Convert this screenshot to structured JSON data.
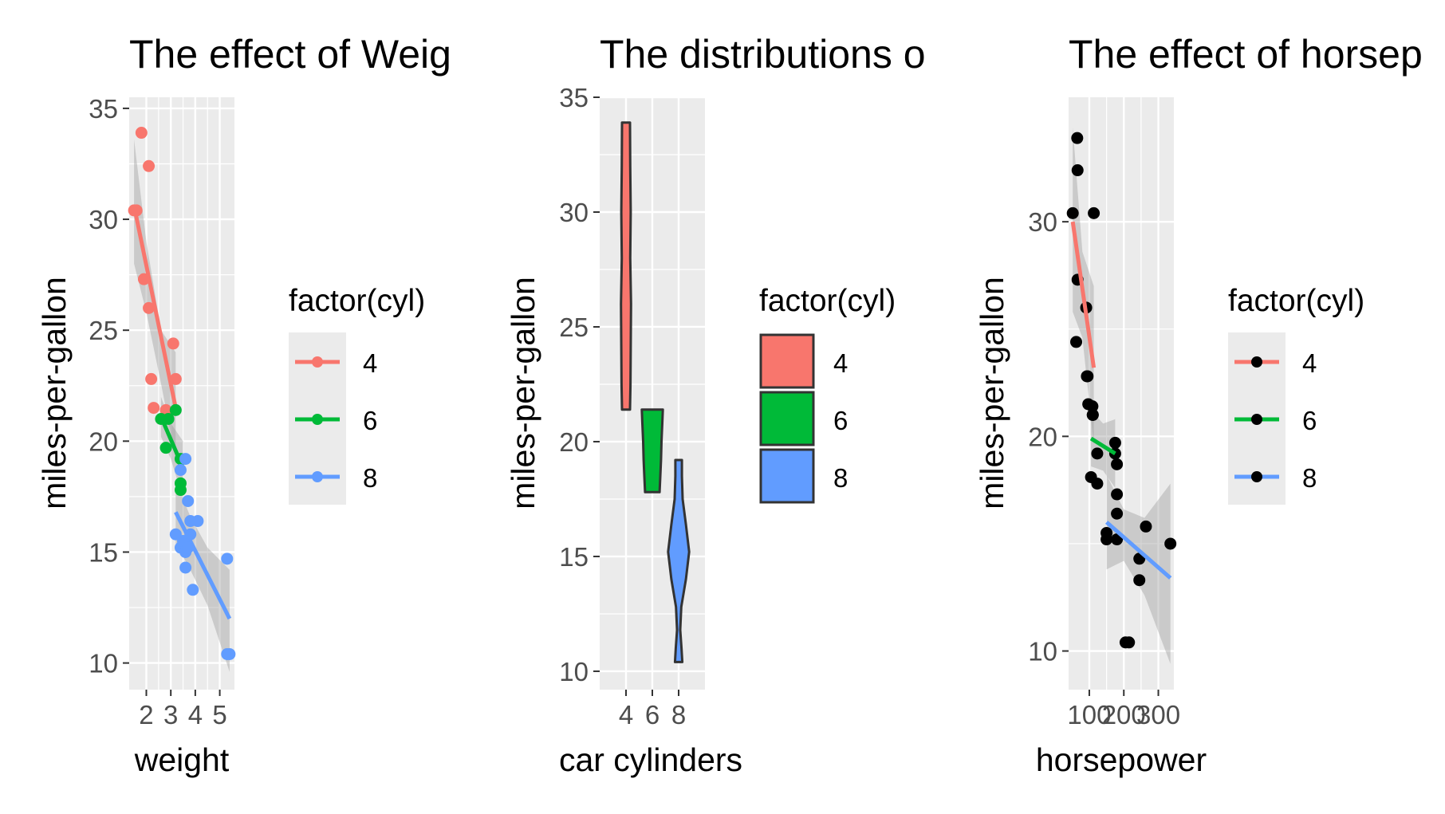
{
  "chart_data": [
    {
      "type": "scatter",
      "title": "The effect of Weig",
      "xlabel": "weight",
      "ylabel": "miles-per-gallon",
      "xlim": [
        1.3,
        5.6
      ],
      "ylim": [
        8.8,
        35.5
      ],
      "x_ticks": [
        2,
        3,
        4,
        5
      ],
      "y_ticks": [
        10,
        15,
        20,
        25,
        30,
        35
      ],
      "grid": true,
      "legend": {
        "title": "factor(cyl)",
        "placement": "right",
        "entries": [
          "4",
          "6",
          "8"
        ]
      },
      "colors": {
        "4": "#F8766D",
        "6": "#00BA38",
        "8": "#619CFF"
      },
      "series": [
        {
          "name": "4",
          "points": [
            [
              1.5,
              30.4
            ],
            [
              1.6,
              30.4
            ],
            [
              1.8,
              33.9
            ],
            [
              1.9,
              27.3
            ],
            [
              2.1,
              32.4
            ],
            [
              2.1,
              26.0
            ],
            [
              2.2,
              22.8
            ],
            [
              2.3,
              21.5
            ],
            [
              2.8,
              21.4
            ],
            [
              3.1,
              24.4
            ],
            [
              3.2,
              22.8
            ]
          ],
          "fit": [
            [
              1.5,
              30.6
            ],
            [
              3.2,
              21.5
            ]
          ],
          "band_upper": [
            [
              1.5,
              33.6
            ],
            [
              2.0,
              29.0
            ],
            [
              2.6,
              25.0
            ],
            [
              3.2,
              24.0
            ]
          ],
          "band_lower": [
            [
              1.5,
              28.0
            ],
            [
              2.0,
              25.8
            ],
            [
              2.6,
              22.6
            ],
            [
              3.2,
              19.2
            ]
          ]
        },
        {
          "name": "6",
          "points": [
            [
              2.6,
              21.0
            ],
            [
              2.9,
              21.0
            ],
            [
              2.8,
              19.7
            ],
            [
              3.2,
              21.4
            ],
            [
              3.4,
              18.1
            ],
            [
              3.4,
              17.8
            ],
            [
              3.4,
              19.2
            ]
          ],
          "fit": [
            [
              2.6,
              21.1
            ],
            [
              3.5,
              18.8
            ]
          ],
          "band_upper": [
            [
              2.6,
              22.0
            ],
            [
              3.0,
              20.8
            ],
            [
              3.5,
              20.0
            ]
          ],
          "band_lower": [
            [
              2.6,
              20.2
            ],
            [
              3.0,
              19.2
            ],
            [
              3.5,
              17.4
            ]
          ]
        },
        {
          "name": "8",
          "points": [
            [
              3.4,
              18.7
            ],
            [
              3.6,
              19.2
            ],
            [
              3.7,
              17.3
            ],
            [
              3.8,
              16.4
            ],
            [
              3.4,
              15.2
            ],
            [
              3.5,
              15.5
            ],
            [
              3.6,
              15.0
            ],
            [
              3.7,
              15.2
            ],
            [
              3.8,
              15.8
            ],
            [
              3.2,
              15.8
            ],
            [
              3.6,
              14.3
            ],
            [
              3.9,
              13.3
            ],
            [
              4.1,
              16.4
            ],
            [
              5.3,
              10.4
            ],
            [
              5.4,
              10.4
            ],
            [
              5.3,
              14.7
            ]
          ],
          "fit": [
            [
              3.2,
              16.8
            ],
            [
              5.4,
              12.0
            ]
          ],
          "band_upper": [
            [
              3.2,
              18.2
            ],
            [
              3.8,
              16.6
            ],
            [
              4.5,
              15.2
            ],
            [
              5.4,
              14.2
            ]
          ],
          "band_lower": [
            [
              3.2,
              15.4
            ],
            [
              3.8,
              14.2
            ],
            [
              4.5,
              12.6
            ],
            [
              5.4,
              9.6
            ]
          ]
        }
      ]
    },
    {
      "type": "violin",
      "title": "The distributions o",
      "xlabel": "car cylinders",
      "ylabel": "miles-per-gallon",
      "categories": [
        "4",
        "6",
        "8"
      ],
      "ylim": [
        9.2,
        35.0
      ],
      "y_ticks": [
        10,
        15,
        20,
        25,
        30,
        35
      ],
      "grid": true,
      "legend": {
        "title": "factor(cyl)",
        "placement": "right",
        "entries": [
          "4",
          "6",
          "8"
        ]
      },
      "colors": {
        "4": "#F8766D",
        "6": "#00BA38",
        "8": "#619CFF"
      },
      "violins": [
        {
          "category": "4",
          "ymin": 21.4,
          "ymax": 33.9,
          "profile": [
            [
              21.4,
              0.3
            ],
            [
              22.5,
              0.34
            ],
            [
              24.0,
              0.36
            ],
            [
              26.0,
              0.38
            ],
            [
              28.0,
              0.32
            ],
            [
              30.0,
              0.36
            ],
            [
              32.0,
              0.32
            ],
            [
              33.9,
              0.3
            ]
          ]
        },
        {
          "category": "6",
          "ymin": 17.8,
          "ymax": 21.4,
          "profile": [
            [
              17.8,
              0.55
            ],
            [
              18.4,
              0.6
            ],
            [
              19.2,
              0.66
            ],
            [
              20.0,
              0.7
            ],
            [
              20.8,
              0.76
            ],
            [
              21.4,
              0.8
            ]
          ]
        },
        {
          "category": "8",
          "ymin": 10.4,
          "ymax": 19.2,
          "profile": [
            [
              10.4,
              0.28
            ],
            [
              11.0,
              0.22
            ],
            [
              11.8,
              0.12
            ],
            [
              12.8,
              0.2
            ],
            [
              14.0,
              0.55
            ],
            [
              15.2,
              0.8
            ],
            [
              16.4,
              0.55
            ],
            [
              17.5,
              0.3
            ],
            [
              18.5,
              0.25
            ],
            [
              19.2,
              0.25
            ]
          ]
        }
      ]
    },
    {
      "type": "scatter",
      "title": "The effect of horsep",
      "xlabel": "horsepower",
      "ylabel": "miles-per-gallon",
      "xlim": [
        40,
        345
      ],
      "ylim": [
        8.2,
        35.8
      ],
      "x_ticks": [
        100,
        200,
        300
      ],
      "x_tick_labels": [
        "100",
        "200",
        "300"
      ],
      "y_ticks": [
        10,
        20,
        30
      ],
      "grid": true,
      "legend": {
        "title": "factor(cyl)",
        "placement": "right",
        "entries": [
          "4",
          "6",
          "8"
        ]
      },
      "colors": {
        "4": "#F8766D",
        "6": "#00BA38",
        "8": "#619CFF"
      },
      "points": [
        [
          65,
          33.9
        ],
        [
          66,
          32.4
        ],
        [
          52,
          30.4
        ],
        [
          113,
          30.4
        ],
        [
          66,
          27.3
        ],
        [
          91,
          26.0
        ],
        [
          62,
          24.4
        ],
        [
          93,
          22.8
        ],
        [
          95,
          22.8
        ],
        [
          97,
          21.5
        ],
        [
          109,
          21.4
        ],
        [
          110,
          21.0
        ],
        [
          110,
          21.0
        ],
        [
          105,
          18.1
        ],
        [
          123,
          17.8
        ],
        [
          123,
          19.2
        ],
        [
          175,
          19.7
        ],
        [
          150,
          15.5
        ],
        [
          150,
          15.2
        ],
        [
          180,
          16.4
        ],
        [
          180,
          17.3
        ],
        [
          180,
          15.2
        ],
        [
          175,
          19.2
        ],
        [
          245,
          13.3
        ],
        [
          245,
          14.3
        ],
        [
          264,
          15.8
        ],
        [
          335,
          15.0
        ],
        [
          205,
          10.4
        ],
        [
          215,
          10.4
        ],
        [
          180,
          18.7
        ]
      ],
      "series": [
        {
          "name": "4",
          "fit": [
            [
              52,
              30.0
            ],
            [
              113,
              23.2
            ]
          ],
          "band_upper": [
            [
              52,
              34.4
            ],
            [
              80,
              28.6
            ],
            [
              113,
              27.0
            ]
          ],
          "band_lower": [
            [
              52,
              25.8
            ],
            [
              80,
              24.6
            ],
            [
              113,
              19.6
            ]
          ]
        },
        {
          "name": "6",
          "fit": [
            [
              105,
              19.9
            ],
            [
              175,
              19.2
            ]
          ],
          "band_upper": [
            [
              105,
              21.2
            ],
            [
              140,
              20.6
            ],
            [
              175,
              20.8
            ]
          ],
          "band_lower": [
            [
              105,
              18.6
            ],
            [
              140,
              18.4
            ],
            [
              175,
              17.6
            ]
          ]
        },
        {
          "name": "8",
          "fit": [
            [
              150,
              16.0
            ],
            [
              335,
              13.4
            ]
          ],
          "band_upper": [
            [
              150,
              18.2
            ],
            [
              200,
              16.6
            ],
            [
              260,
              16.2
            ],
            [
              335,
              17.8
            ]
          ],
          "band_lower": [
            [
              150,
              13.8
            ],
            [
              200,
              14.2
            ],
            [
              260,
              12.6
            ],
            [
              335,
              9.4
            ]
          ]
        }
      ]
    }
  ]
}
